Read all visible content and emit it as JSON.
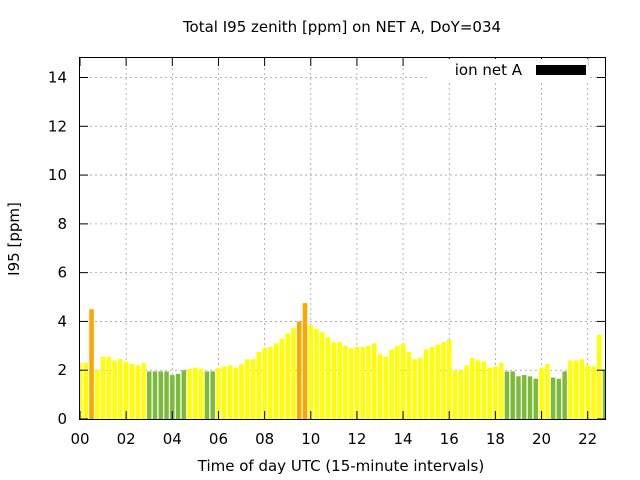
{
  "chart_data": {
    "type": "bar",
    "title": "Total I95 zenith [ppm] on NET A, DoY=034",
    "xlabel": "Time of day UTC (15-minute intervals)",
    "ylabel": "I95 [ppm]",
    "ylim": [
      0,
      14.8
    ],
    "xlim": [
      0,
      22.75
    ],
    "yticks": [
      "0",
      "2",
      "4",
      "6",
      "8",
      "10",
      "12",
      "14"
    ],
    "xticks": [
      "00",
      "02",
      "04",
      "06",
      "08",
      "10",
      "12",
      "14",
      "16",
      "18",
      "20",
      "22"
    ],
    "grid": true,
    "legend": {
      "label": "ion net A",
      "position": "top-right",
      "color": "#000000"
    },
    "colors": {
      "green": "#7cba3c",
      "yellow": "#ffff00",
      "orange": "#ffa500"
    },
    "bar_interval_hours": 0.25,
    "values": [
      2.3,
      2.3,
      4.5,
      2.0,
      2.55,
      2.55,
      2.4,
      2.45,
      2.35,
      2.25,
      2.2,
      2.3,
      1.95,
      1.95,
      1.95,
      1.95,
      1.8,
      1.85,
      2.0,
      2.05,
      2.1,
      2.05,
      1.95,
      1.95,
      2.1,
      2.15,
      2.2,
      2.1,
      2.25,
      2.45,
      2.45,
      2.75,
      2.9,
      2.95,
      3.1,
      3.3,
      3.5,
      3.75,
      4.0,
      4.75,
      3.85,
      3.7,
      3.55,
      3.35,
      3.15,
      3.15,
      3.0,
      2.9,
      2.95,
      2.95,
      3.0,
      3.1,
      2.65,
      2.55,
      2.85,
      3.0,
      3.1,
      2.75,
      2.45,
      2.5,
      2.85,
      2.95,
      3.05,
      3.15,
      3.25,
      2.0,
      2.0,
      2.2,
      2.5,
      2.4,
      2.35,
      2.1,
      2.15,
      2.3,
      1.95,
      1.95,
      1.75,
      1.8,
      1.75,
      1.65,
      2.1,
      2.25,
      1.7,
      1.65,
      1.95,
      2.4,
      2.4,
      2.45,
      2.2,
      2.15,
      3.45,
      2.0
    ],
    "bar_colors": [
      "yellow",
      "yellow",
      "orange",
      "yellow",
      "yellow",
      "yellow",
      "yellow",
      "yellow",
      "yellow",
      "yellow",
      "yellow",
      "yellow",
      "green",
      "green",
      "green",
      "green",
      "green",
      "green",
      "green",
      "yellow",
      "yellow",
      "yellow",
      "green",
      "green",
      "yellow",
      "yellow",
      "yellow",
      "yellow",
      "yellow",
      "yellow",
      "yellow",
      "yellow",
      "yellow",
      "yellow",
      "yellow",
      "yellow",
      "yellow",
      "yellow",
      "orange",
      "orange",
      "yellow",
      "yellow",
      "yellow",
      "yellow",
      "yellow",
      "yellow",
      "yellow",
      "yellow",
      "yellow",
      "yellow",
      "yellow",
      "yellow",
      "yellow",
      "yellow",
      "yellow",
      "yellow",
      "yellow",
      "yellow",
      "yellow",
      "yellow",
      "yellow",
      "yellow",
      "yellow",
      "yellow",
      "yellow",
      "yellow",
      "yellow",
      "yellow",
      "yellow",
      "yellow",
      "yellow",
      "yellow",
      "yellow",
      "yellow",
      "green",
      "green",
      "green",
      "green",
      "green",
      "green",
      "yellow",
      "yellow",
      "green",
      "green",
      "green",
      "yellow",
      "yellow",
      "yellow",
      "yellow",
      "yellow",
      "yellow",
      "green"
    ]
  }
}
